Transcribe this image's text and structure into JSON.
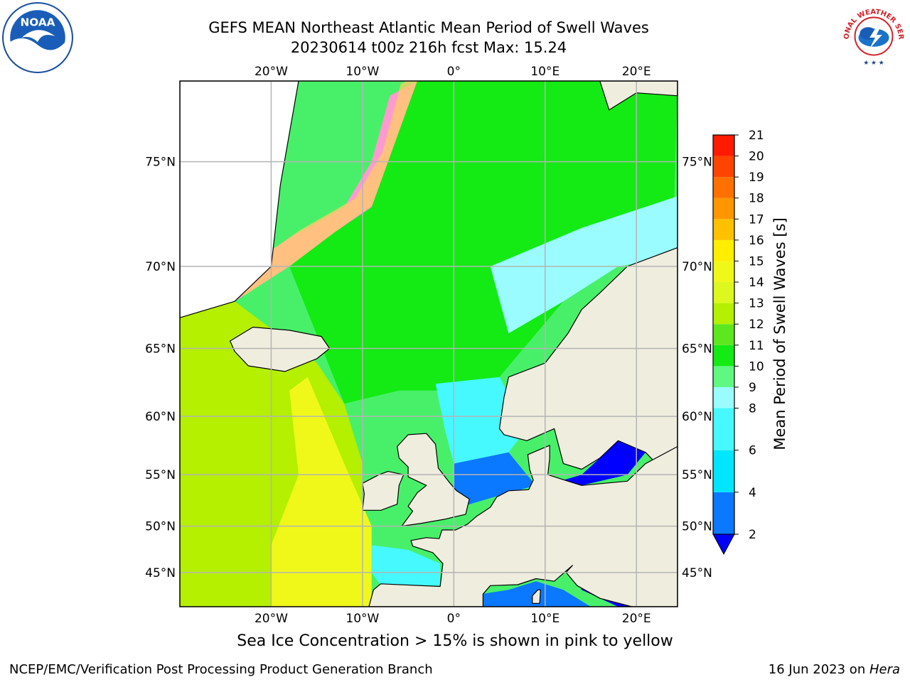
{
  "title": {
    "line1": "GEFS MEAN Northeast Atlantic Mean Period of Swell Waves",
    "line2": "20230614 t00z 216h fcst   Max: 15.24"
  },
  "logos": {
    "left": "NOAA",
    "right": "NATIONAL WEATHER SERVICE"
  },
  "map": {
    "projection": "lat-lon",
    "lon_range": [
      -30,
      24.5
    ],
    "lat_range": [
      41,
      78
    ],
    "grid": true,
    "lon_ticks": [
      {
        "value": -20,
        "label": "20°W"
      },
      {
        "value": -10,
        "label": "10°W"
      },
      {
        "value": 0,
        "label": "0°"
      },
      {
        "value": 10,
        "label": "10°E"
      },
      {
        "value": 20,
        "label": "20°E"
      }
    ],
    "lat_ticks": [
      {
        "value": 45,
        "label": "45°N"
      },
      {
        "value": 50,
        "label": "50°N"
      },
      {
        "value": 55,
        "label": "55°N"
      },
      {
        "value": 60,
        "label": "60°N"
      },
      {
        "value": 65,
        "label": "65°N"
      },
      {
        "value": 70,
        "label": "70°N"
      },
      {
        "value": 75,
        "label": "75°N"
      }
    ],
    "land_color": "#efedde",
    "grid_color": "#b4b4b4"
  },
  "colorbar": {
    "label": "Mean Period of Swell Waves [s]",
    "extend": "min",
    "under_color": "#0000ff",
    "bands": [
      {
        "from": 2,
        "to": 4,
        "color": "#0a78ff"
      },
      {
        "from": 4,
        "to": 6,
        "color": "#00e6ff"
      },
      {
        "from": 6,
        "to": 8,
        "color": "#46f8ff"
      },
      {
        "from": 8,
        "to": 9,
        "color": "#9afcff"
      },
      {
        "from": 9,
        "to": 10,
        "color": "#5ef882"
      },
      {
        "from": 10,
        "to": 11,
        "color": "#14ea14"
      },
      {
        "from": 11,
        "to": 12,
        "color": "#5ee61e"
      },
      {
        "from": 12,
        "to": 13,
        "color": "#b4f000"
      },
      {
        "from": 13,
        "to": 14,
        "color": "#dcf81e"
      },
      {
        "from": 14,
        "to": 15,
        "color": "#f0f81a"
      },
      {
        "from": 15,
        "to": 16,
        "color": "#ffee00"
      },
      {
        "from": 16,
        "to": 17,
        "color": "#ffc000"
      },
      {
        "from": 17,
        "to": 18,
        "color": "#ff9600"
      },
      {
        "from": 18,
        "to": 19,
        "color": "#ff7000"
      },
      {
        "from": 19,
        "to": 20,
        "color": "#ff4400"
      },
      {
        "from": 20,
        "to": 21,
        "color": "#ff1a00"
      }
    ],
    "ticks": [
      2,
      4,
      6,
      8,
      9,
      10,
      11,
      12,
      13,
      14,
      15,
      16,
      17,
      18,
      19,
      20,
      21
    ]
  },
  "field_regions": [
    {
      "name": "ice-edge-greenland",
      "value": 13.5,
      "type": "sea-ice",
      "points": [
        [
          -30,
          68.5
        ],
        [
          -24,
          69.5
        ],
        [
          -18,
          71.5
        ],
        [
          -12,
          73
        ],
        [
          -9,
          75
        ],
        [
          -7,
          77.5
        ],
        [
          -4,
          78
        ],
        [
          -6,
          76
        ],
        [
          -9,
          73
        ],
        [
          -13,
          71.8
        ],
        [
          -18,
          70
        ],
        [
          -24,
          68
        ],
        [
          -30,
          66.8
        ]
      ]
    },
    {
      "name": "atlantic-west",
      "value": 12.5,
      "type": "sst",
      "points": [
        [
          -30,
          41
        ],
        [
          -10,
          41
        ],
        [
          -10,
          56
        ],
        [
          -12,
          61
        ],
        [
          -15,
          64
        ],
        [
          -24,
          68
        ],
        [
          -30,
          67
        ]
      ]
    },
    {
      "name": "atlantic-central-yellow",
      "value": 14.5,
      "type": "sst",
      "points": [
        [
          -20,
          41
        ],
        [
          -9,
          41
        ],
        [
          -9,
          50
        ],
        [
          -12,
          56
        ],
        [
          -16,
          63
        ],
        [
          -18,
          62
        ],
        [
          -17,
          55
        ],
        [
          -20,
          48
        ]
      ]
    },
    {
      "name": "norwegian-sea",
      "value": 10.5,
      "type": "sst",
      "points": [
        [
          -12,
          61
        ],
        [
          -6,
          62
        ],
        [
          0,
          62
        ],
        [
          5,
          63
        ],
        [
          12,
          68
        ],
        [
          18,
          70
        ],
        [
          24,
          71
        ],
        [
          24.5,
          78
        ],
        [
          -4,
          78
        ],
        [
          -9,
          73
        ],
        [
          -13,
          71.8
        ],
        [
          -18,
          70
        ]
      ]
    },
    {
      "name": "barents-cyan",
      "value": 8.5,
      "type": "sst",
      "points": [
        [
          4,
          70
        ],
        [
          14,
          72
        ],
        [
          24.5,
          73.5
        ],
        [
          24.5,
          70.5
        ],
        [
          18,
          70
        ],
        [
          12,
          68
        ],
        [
          6,
          66
        ]
      ]
    },
    {
      "name": "north-sea-cyan",
      "value": 7,
      "type": "sst",
      "points": [
        [
          -2,
          62.5
        ],
        [
          5,
          63
        ],
        [
          8,
          59
        ],
        [
          6,
          57
        ],
        [
          0,
          56
        ],
        [
          -1,
          59
        ]
      ]
    },
    {
      "name": "north-sea-blue",
      "value": 3,
      "type": "sst",
      "points": [
        [
          0,
          56
        ],
        [
          6,
          57
        ],
        [
          8,
          55
        ],
        [
          9,
          54
        ],
        [
          4,
          52.8
        ],
        [
          1,
          52
        ],
        [
          0,
          53
        ]
      ]
    },
    {
      "name": "baltic",
      "value": 1.5,
      "type": "sst",
      "points": [
        [
          10,
          54
        ],
        [
          14,
          55
        ],
        [
          16,
          56.5
        ],
        [
          18,
          58.5
        ],
        [
          21,
          59.8
        ],
        [
          23,
          59.8
        ],
        [
          21,
          57
        ],
        [
          19,
          55
        ],
        [
          14,
          54
        ]
      ]
    },
    {
      "name": "bay-of-biscay",
      "value": 7,
      "type": "sst",
      "points": [
        [
          -9,
          48
        ],
        [
          -5,
          47.5
        ],
        [
          -1.5,
          46
        ],
        [
          -1.5,
          43.5
        ],
        [
          -8,
          43.5
        ],
        [
          -9,
          45
        ]
      ]
    },
    {
      "name": "mediterranean",
      "value": 3,
      "type": "sst",
      "points": [
        [
          3,
          42.5
        ],
        [
          6,
          43
        ],
        [
          9,
          44
        ],
        [
          12,
          43
        ],
        [
          15,
          41
        ],
        [
          10,
          41
        ],
        [
          3,
          41
        ]
      ]
    },
    {
      "name": "adriatic",
      "value": 1.5,
      "type": "sst",
      "points": [
        [
          13,
          45.5
        ],
        [
          15,
          45
        ],
        [
          19,
          42
        ],
        [
          20,
          41
        ],
        [
          18,
          41
        ],
        [
          14,
          43
        ]
      ]
    }
  ],
  "land_polygons": [
    {
      "name": "greenland",
      "points": [
        [
          -30,
          67
        ],
        [
          -24,
          68
        ],
        [
          -20,
          70
        ],
        [
          -19,
          74
        ],
        [
          -17,
          78
        ],
        [
          -30,
          78
        ]
      ]
    },
    {
      "name": "iceland",
      "points": [
        [
          -24.5,
          65.5
        ],
        [
          -22,
          66.4
        ],
        [
          -18,
          66.2
        ],
        [
          -14.5,
          65.8
        ],
        [
          -13.6,
          65
        ],
        [
          -15,
          64.3
        ],
        [
          -18.5,
          63.4
        ],
        [
          -22.5,
          63.8
        ],
        [
          -24,
          64.8
        ]
      ]
    },
    {
      "name": "scandinavia",
      "points": [
        [
          5,
          59
        ],
        [
          5.5,
          61.5
        ],
        [
          6,
          63
        ],
        [
          10,
          64
        ],
        [
          12.5,
          66
        ],
        [
          14,
          67.5
        ],
        [
          16,
          68.5
        ],
        [
          19,
          70
        ],
        [
          24.5,
          71
        ],
        [
          24.5,
          54
        ],
        [
          21,
          57
        ],
        [
          18,
          58
        ],
        [
          16,
          56.5
        ],
        [
          14,
          55.5
        ],
        [
          12,
          56
        ],
        [
          11,
          59
        ],
        [
          8,
          58
        ],
        [
          5.5,
          58.5
        ]
      ]
    },
    {
      "name": "great-britain",
      "points": [
        [
          -5,
          58.5
        ],
        [
          -3,
          58.6
        ],
        [
          -2,
          57.7
        ],
        [
          -1.7,
          55.6
        ],
        [
          -0.5,
          54.3
        ],
        [
          0.3,
          53.5
        ],
        [
          1.7,
          52.7
        ],
        [
          1.3,
          51.2
        ],
        [
          -1,
          50.7
        ],
        [
          -3.5,
          50.3
        ],
        [
          -5.7,
          50
        ],
        [
          -4.5,
          51.5
        ],
        [
          -5,
          52
        ],
        [
          -4,
          53.3
        ],
        [
          -3,
          54
        ],
        [
          -5,
          54.8
        ],
        [
          -5,
          55.7
        ],
        [
          -6,
          56.5
        ],
        [
          -6.2,
          57.5
        ]
      ]
    },
    {
      "name": "ireland",
      "points": [
        [
          -10,
          51.6
        ],
        [
          -8,
          51.6
        ],
        [
          -6.2,
          52.2
        ],
        [
          -6,
          54
        ],
        [
          -5.5,
          55
        ],
        [
          -7.2,
          55.3
        ],
        [
          -8.2,
          55
        ],
        [
          -10,
          54.2
        ],
        [
          -9.8,
          53.2
        ]
      ]
    },
    {
      "name": "europe-main",
      "points": [
        [
          -9.3,
          41
        ],
        [
          -8.8,
          43
        ],
        [
          -8,
          43.7
        ],
        [
          -1.5,
          43.4
        ],
        [
          -1.2,
          46
        ],
        [
          -2.3,
          47.2
        ],
        [
          -4.5,
          47.9
        ],
        [
          -4.7,
          48.5
        ],
        [
          -3,
          48.8
        ],
        [
          -1.6,
          48.7
        ],
        [
          -1.3,
          49.6
        ],
        [
          0.2,
          49.6
        ],
        [
          1.5,
          50.2
        ],
        [
          2.5,
          51
        ],
        [
          4,
          51.9
        ],
        [
          4.7,
          52.9
        ],
        [
          6,
          53.5
        ],
        [
          8.2,
          53.6
        ],
        [
          8.7,
          54.5
        ],
        [
          8.3,
          55.5
        ],
        [
          8.1,
          56.8
        ],
        [
          10.5,
          57.6
        ],
        [
          10.5,
          56.5
        ],
        [
          10.3,
          55
        ],
        [
          12.5,
          54.4
        ],
        [
          14,
          54
        ],
        [
          19,
          54.4
        ],
        [
          21,
          56
        ],
        [
          24.5,
          57.5
        ],
        [
          24.5,
          41
        ],
        [
          19.5,
          41
        ],
        [
          16,
          42
        ],
        [
          13.5,
          43.5
        ],
        [
          12.3,
          45
        ],
        [
          13,
          45.8
        ],
        [
          11,
          44
        ],
        [
          9,
          44.3
        ],
        [
          7,
          43.6
        ],
        [
          4,
          43.5
        ],
        [
          3.2,
          42.5
        ],
        [
          3.2,
          41
        ]
      ]
    },
    {
      "name": "corsica",
      "points": [
        [
          8.6,
          41.4
        ],
        [
          9.4,
          41.4
        ],
        [
          9.5,
          43
        ],
        [
          9.2,
          43
        ],
        [
          8.6,
          42.3
        ]
      ]
    },
    {
      "name": "svalbard",
      "points": [
        [
          16,
          78
        ],
        [
          17,
          77
        ],
        [
          20,
          77.6
        ],
        [
          24.5,
          77.5
        ],
        [
          24.5,
          78
        ]
      ]
    }
  ],
  "footer": {
    "note": "Sea Ice Concentration > 15% is shown in pink to yellow",
    "credit_left": "NCEP/EMC/Verification Post Processing Product Generation Branch",
    "credit_right_date": "16 Jun 2023 on ",
    "credit_right_host": "Hera"
  }
}
